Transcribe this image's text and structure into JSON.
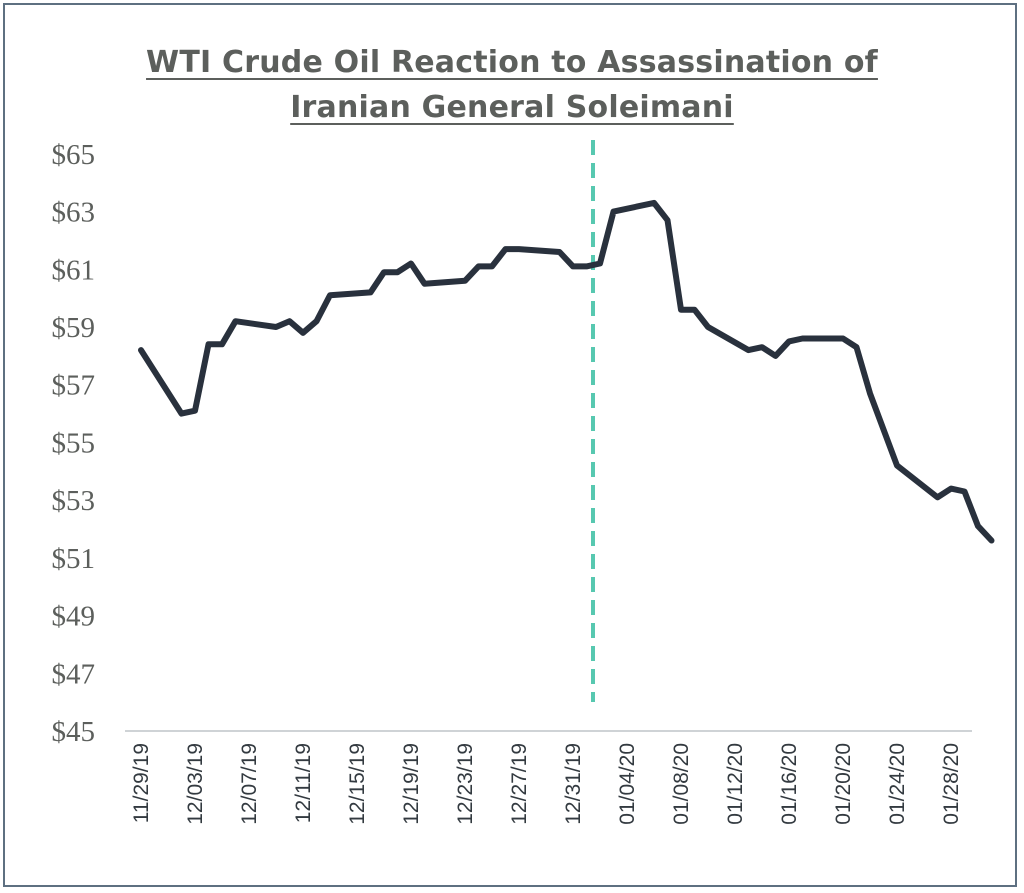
{
  "chart_data": {
    "type": "line",
    "title_line1": "WTI Crude Oil Reaction to Assassination of",
    "title_line2": "Iranian General Soleimani",
    "ylim": [
      45,
      66
    ],
    "y_ticks": [
      "$45",
      "$47",
      "$49",
      "$51",
      "$53",
      "$55",
      "$57",
      "$59",
      "$61",
      "$63",
      "$65"
    ],
    "y_tick_values": [
      45,
      47,
      49,
      51,
      53,
      55,
      57,
      59,
      61,
      63,
      65
    ],
    "x_ticks": [
      "11/29/19",
      "12/03/19",
      "12/07/19",
      "12/11/19",
      "12/15/19",
      "12/19/19",
      "12/23/19",
      "12/27/19",
      "12/31/19",
      "01/04/20",
      "01/08/20",
      "01/12/20",
      "01/16/20",
      "01/20/20",
      "01/24/20",
      "01/28/20"
    ],
    "x_range": [
      "2019-11-29",
      "2020-02-01"
    ],
    "event_marker_date": "2020-01-02",
    "grid": false,
    "colors": {
      "line": "#29313d",
      "marker": "#57c8b0",
      "axis": "#cfd3d6"
    },
    "series": [
      {
        "points": [
          [
            "2019-11-29",
            58.2
          ],
          [
            "2019-12-02",
            56.0
          ],
          [
            "2019-12-03",
            56.1
          ],
          [
            "2019-12-04",
            58.4
          ],
          [
            "2019-12-05",
            58.4
          ],
          [
            "2019-12-06",
            59.2
          ],
          [
            "2019-12-09",
            59.0
          ],
          [
            "2019-12-10",
            59.2
          ],
          [
            "2019-12-11",
            58.8
          ],
          [
            "2019-12-12",
            59.2
          ],
          [
            "2019-12-13",
            60.1
          ],
          [
            "2019-12-16",
            60.2
          ],
          [
            "2019-12-17",
            60.9
          ],
          [
            "2019-12-18",
            60.9
          ],
          [
            "2019-12-19",
            61.2
          ],
          [
            "2019-12-20",
            60.5
          ],
          [
            "2019-12-23",
            60.6
          ],
          [
            "2019-12-24",
            61.1
          ],
          [
            "2019-12-25",
            61.1
          ],
          [
            "2019-12-26",
            61.7
          ],
          [
            "2019-12-27",
            61.7
          ],
          [
            "2019-12-30",
            61.6
          ],
          [
            "2019-12-31",
            61.1
          ],
          [
            "2020-01-01",
            61.1
          ],
          [
            "2020-01-02",
            61.2
          ],
          [
            "2020-01-03",
            63.0
          ],
          [
            "2020-01-06",
            63.3
          ],
          [
            "2020-01-07",
            62.7
          ],
          [
            "2020-01-08",
            59.6
          ],
          [
            "2020-01-09",
            59.6
          ],
          [
            "2020-01-10",
            59.0
          ],
          [
            "2020-01-13",
            58.2
          ],
          [
            "2020-01-14",
            58.3
          ],
          [
            "2020-01-15",
            58.0
          ],
          [
            "2020-01-16",
            58.5
          ],
          [
            "2020-01-17",
            58.6
          ],
          [
            "2020-01-20",
            58.6
          ],
          [
            "2020-01-21",
            58.3
          ],
          [
            "2020-01-22",
            56.7
          ],
          [
            "2020-01-24",
            54.2
          ],
          [
            "2020-01-27",
            53.1
          ],
          [
            "2020-01-28",
            53.4
          ],
          [
            "2020-01-29",
            53.3
          ],
          [
            "2020-01-30",
            52.1
          ],
          [
            "2020-01-31",
            51.6
          ]
        ]
      }
    ]
  }
}
